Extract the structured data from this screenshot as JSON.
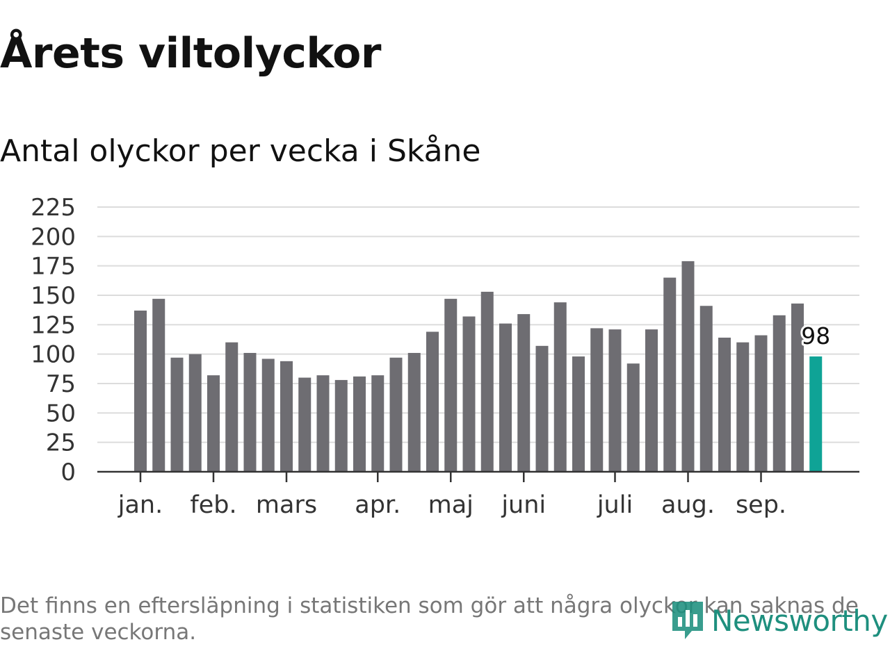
{
  "header": {
    "title": "Årets viltolyckor",
    "subtitle": "Antal olyckor per vecka i Skåne"
  },
  "footer": {
    "note": "Det finns en eftersläpning i statistiken som gör att några olyckor kan saknas de senaste veckorna.",
    "brand": "Newsworthy"
  },
  "colors": {
    "bar": "#6e6d72",
    "highlight": "#0fa396",
    "grid": "#dcdcdc",
    "axis": "#333333",
    "brand": "#1e8f7e"
  },
  "chart_data": {
    "type": "bar",
    "title": "Årets viltolyckor",
    "subtitle": "Antal olyckor per vecka i Skåne",
    "xlabel": "",
    "ylabel": "",
    "ylim": [
      0,
      225
    ],
    "yticks": [
      0,
      25,
      50,
      75,
      100,
      125,
      150,
      175,
      200,
      225
    ],
    "grid": true,
    "values": [
      137,
      147,
      97,
      100,
      82,
      110,
      101,
      96,
      94,
      80,
      82,
      78,
      81,
      82,
      97,
      101,
      119,
      147,
      132,
      153,
      126,
      134,
      107,
      144,
      98,
      122,
      121,
      92,
      121,
      165,
      179,
      141,
      114,
      110,
      116,
      133,
      143,
      98
    ],
    "highlight_index": 37,
    "highlight_label": "98",
    "month_labels": [
      {
        "label": "jan.",
        "week": 1
      },
      {
        "label": "feb.",
        "week": 5
      },
      {
        "label": "mars",
        "week": 9
      },
      {
        "label": "apr.",
        "week": 14
      },
      {
        "label": "maj",
        "week": 18
      },
      {
        "label": "juni",
        "week": 22
      },
      {
        "label": "juli",
        "week": 27
      },
      {
        "label": "aug.",
        "week": 31
      },
      {
        "label": "sep.",
        "week": 35
      }
    ]
  }
}
